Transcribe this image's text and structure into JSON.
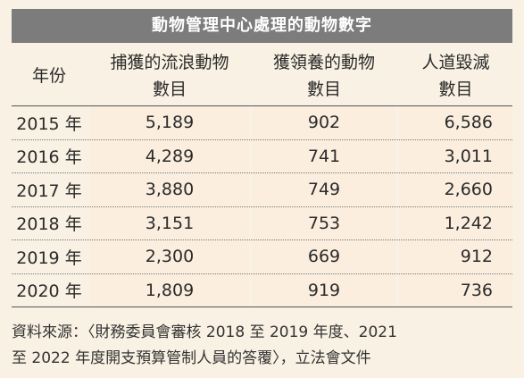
{
  "title": "動物管理中心處理的動物數字",
  "headers": {
    "year": "年份",
    "col1_line1": "捕獲的流浪動物",
    "col1_line2": "數目",
    "col2_line1": "獲領養的動物",
    "col2_line2": "數目",
    "col3_line1": "人道毀滅",
    "col3_line2": "數目"
  },
  "rows": [
    {
      "year": "2015 年",
      "captured": "5,189",
      "adopted": "902",
      "euthanized": "6,586"
    },
    {
      "year": "2016 年",
      "captured": "4,289",
      "adopted": "741",
      "euthanized": "3,011"
    },
    {
      "year": "2017 年",
      "captured": "3,880",
      "adopted": "749",
      "euthanized": "2,660"
    },
    {
      "year": "2018 年",
      "captured": "3,151",
      "adopted": "753",
      "euthanized": "1,242"
    },
    {
      "year": "2019 年",
      "captured": "2,300",
      "adopted": "669",
      "euthanized": "912"
    },
    {
      "year": "2020 年",
      "captured": "1,809",
      "adopted": "919",
      "euthanized": "736"
    }
  ],
  "source_line1": "資料來源：〈財務委員會審核 2018 至 2019 年度、2021",
  "source_line2": "至 2022 年度開支預算管制人員的答覆〉，立法會文件"
}
